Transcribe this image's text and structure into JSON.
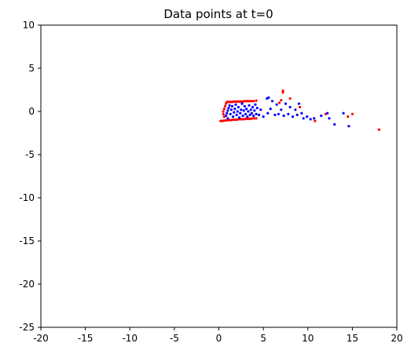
{
  "chart_data": {
    "type": "scatter",
    "title": "Data points at t=0",
    "xlabel": "",
    "ylabel": "",
    "xlim": [
      -20,
      20
    ],
    "ylim": [
      -25,
      10
    ],
    "x_ticks": [
      -20,
      -15,
      -10,
      -5,
      0,
      5,
      10,
      15,
      20
    ],
    "y_ticks": [
      -25,
      -20,
      -15,
      -10,
      -5,
      0,
      5,
      10
    ],
    "grid": false,
    "series": [
      {
        "color": "#ff0000",
        "marker_size": 1.6,
        "points": [
          [
            0.2,
            -1.1
          ],
          [
            0.4,
            -1.1
          ],
          [
            0.6,
            -1.05
          ],
          [
            0.8,
            -1.05
          ],
          [
            1.0,
            -1.0
          ],
          [
            1.2,
            -1.0
          ],
          [
            1.4,
            -1.0
          ],
          [
            1.6,
            -0.95
          ],
          [
            1.8,
            -0.95
          ],
          [
            2.0,
            -0.95
          ],
          [
            2.2,
            -0.9
          ],
          [
            2.4,
            -0.9
          ],
          [
            2.6,
            -0.9
          ],
          [
            2.8,
            -0.9
          ],
          [
            3.0,
            -0.85
          ],
          [
            3.2,
            -0.85
          ],
          [
            3.4,
            -0.85
          ],
          [
            3.6,
            -0.85
          ],
          [
            3.8,
            -0.8
          ],
          [
            4.0,
            -0.8
          ],
          [
            4.2,
            -0.8
          ],
          [
            0.9,
            1.1
          ],
          [
            1.1,
            1.1
          ],
          [
            1.3,
            1.1
          ],
          [
            1.5,
            1.1
          ],
          [
            1.7,
            1.15
          ],
          [
            1.9,
            1.15
          ],
          [
            2.1,
            1.15
          ],
          [
            2.3,
            1.15
          ],
          [
            2.5,
            1.15
          ],
          [
            2.7,
            1.15
          ],
          [
            2.9,
            1.2
          ],
          [
            3.1,
            1.2
          ],
          [
            3.3,
            1.2
          ],
          [
            3.5,
            1.2
          ],
          [
            3.7,
            1.2
          ],
          [
            3.9,
            1.2
          ],
          [
            4.2,
            1.25
          ],
          [
            0.6,
            -0.6
          ],
          [
            0.5,
            -0.3
          ],
          [
            0.5,
            0.0
          ],
          [
            0.6,
            0.3
          ],
          [
            0.7,
            0.6
          ],
          [
            0.8,
            0.9
          ],
          [
            6.8,
            1.0
          ],
          [
            7.0,
            1.3
          ],
          [
            7.2,
            2.2
          ],
          [
            7.2,
            2.4
          ],
          [
            8.0,
            1.5
          ],
          [
            9.1,
            0.5
          ],
          [
            10.8,
            -1.1
          ],
          [
            12.0,
            -0.3
          ],
          [
            14.5,
            -0.6
          ],
          [
            15.0,
            -0.3
          ],
          [
            18.0,
            -2.1
          ]
        ]
      },
      {
        "color": "#0000ff",
        "marker_size": 1.6,
        "points": [
          [
            0.8,
            -0.5
          ],
          [
            0.9,
            -0.2
          ],
          [
            1.0,
            0.1
          ],
          [
            1.1,
            0.4
          ],
          [
            1.2,
            0.7
          ],
          [
            1.0,
            -0.8
          ],
          [
            1.3,
            -0.3
          ],
          [
            1.4,
            0.2
          ],
          [
            1.5,
            0.6
          ],
          [
            1.6,
            -0.6
          ],
          [
            1.7,
            -0.1
          ],
          [
            1.8,
            0.3
          ],
          [
            1.9,
            0.8
          ],
          [
            2.0,
            -0.4
          ],
          [
            2.1,
            0.0
          ],
          [
            2.2,
            0.5
          ],
          [
            2.3,
            -0.7
          ],
          [
            2.4,
            -0.2
          ],
          [
            2.5,
            0.2
          ],
          [
            2.6,
            0.9
          ],
          [
            2.7,
            -0.5
          ],
          [
            2.8,
            0.1
          ],
          [
            2.9,
            0.6
          ],
          [
            3.0,
            -0.3
          ],
          [
            3.1,
            0.3
          ],
          [
            3.2,
            -0.6
          ],
          [
            3.3,
            0.0
          ],
          [
            3.4,
            0.7
          ],
          [
            3.5,
            -0.4
          ],
          [
            3.6,
            0.2
          ],
          [
            3.7,
            -0.2
          ],
          [
            3.8,
            0.5
          ],
          [
            3.9,
            -0.5
          ],
          [
            4.0,
            0.1
          ],
          [
            4.1,
            0.8
          ],
          [
            4.2,
            -0.3
          ],
          [
            4.3,
            0.4
          ],
          [
            4.5,
            -0.4
          ],
          [
            4.7,
            0.2
          ],
          [
            5.0,
            -0.6
          ],
          [
            5.4,
            1.5
          ],
          [
            5.6,
            1.6
          ],
          [
            6.0,
            1.2
          ],
          [
            5.5,
            -0.2
          ],
          [
            5.8,
            0.3
          ],
          [
            6.3,
            -0.4
          ],
          [
            6.5,
            0.8
          ],
          [
            6.7,
            -0.3
          ],
          [
            7.0,
            0.2
          ],
          [
            7.3,
            -0.5
          ],
          [
            7.5,
            0.9
          ],
          [
            7.8,
            -0.3
          ],
          [
            8.0,
            0.5
          ],
          [
            8.3,
            -0.6
          ],
          [
            8.6,
            0.2
          ],
          [
            8.8,
            -0.4
          ],
          [
            9.0,
            0.9
          ],
          [
            9.3,
            -0.2
          ],
          [
            9.5,
            -0.8
          ],
          [
            9.9,
            -0.6
          ],
          [
            10.3,
            -0.9
          ],
          [
            10.7,
            -0.8
          ],
          [
            11.5,
            -0.5
          ],
          [
            12.2,
            -0.2
          ],
          [
            12.4,
            -0.8
          ],
          [
            13.0,
            -1.5
          ],
          [
            14.0,
            -0.2
          ],
          [
            14.6,
            -1.7
          ]
        ]
      }
    ]
  }
}
